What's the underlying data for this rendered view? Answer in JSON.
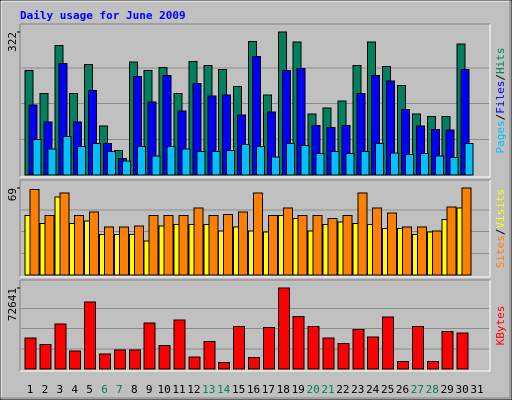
{
  "chart_data": [
    {
      "type": "bar",
      "title": "Daily usage for June 2009",
      "title_color": "#0000ff",
      "legend_separator": "/",
      "ylim": [
        0,
        322
      ],
      "yticks": [
        322
      ],
      "series": [
        {
          "name": "Hits",
          "color": "#00805c",
          "values": [
            235,
            183,
            292,
            183,
            249,
            110,
            55,
            254,
            235,
            242,
            183,
            256,
            247,
            238,
            199,
            301,
            180,
            322,
            299,
            137,
            151,
            167,
            247,
            299,
            244,
            201,
            137,
            132,
            132,
            295,
            null
          ]
        },
        {
          "name": "Files",
          "color": "#0000ff",
          "values": [
            158,
            119,
            251,
            119,
            190,
            71,
            37,
            222,
            164,
            224,
            144,
            206,
            178,
            180,
            135,
            267,
            142,
            235,
            240,
            112,
            107,
            112,
            183,
            224,
            212,
            148,
            110,
            103,
            101,
            237,
            null
          ]
        },
        {
          "name": "Pages",
          "color": "#00c0ff",
          "values": [
            80,
            59,
            87,
            64,
            71,
            53,
            32,
            64,
            43,
            64,
            59,
            53,
            53,
            55,
            69,
            64,
            41,
            71,
            66,
            48,
            53,
            48,
            53,
            71,
            50,
            46,
            48,
            43,
            39,
            71,
            null
          ]
        }
      ]
    },
    {
      "type": "bar",
      "legend_separator": "/",
      "ylim": [
        0,
        69
      ],
      "yticks": [
        69
      ],
      "series": [
        {
          "name": "Visits",
          "color": "#ffff00",
          "values": [
            47,
            41,
            62,
            41,
            43,
            32,
            32,
            32,
            27,
            39,
            40,
            40,
            40,
            35,
            38,
            35,
            34,
            47,
            45,
            35,
            40,
            42,
            41,
            40,
            37,
            37,
            32,
            34,
            44,
            53,
            null
          ]
        },
        {
          "name": "Sites",
          "color": "#ff8000",
          "values": [
            68,
            47,
            65,
            47,
            50,
            38,
            38,
            39,
            47,
            47,
            47,
            53,
            47,
            48,
            50,
            65,
            47,
            53,
            47,
            47,
            45,
            47,
            65,
            53,
            49,
            38,
            38,
            35,
            54,
            69,
            null
          ]
        }
      ]
    },
    {
      "type": "bar",
      "ylim": [
        0,
        72641
      ],
      "yticks": [
        72641
      ],
      "categories": [
        "1",
        "2",
        "3",
        "4",
        "5",
        "6",
        "7",
        "8",
        "9",
        "10",
        "11",
        "12",
        "13",
        "14",
        "15",
        "16",
        "17",
        "18",
        "19",
        "20",
        "21",
        "22",
        "23",
        "24",
        "25",
        "26",
        "27",
        "28",
        "29",
        "30",
        "31"
      ],
      "category_colors": [
        "#000000",
        "#000000",
        "#000000",
        "#000000",
        "#000000",
        "#00805c",
        "#00805c",
        "#000000",
        "#000000",
        "#000000",
        "#000000",
        "#000000",
        "#00805c",
        "#00805c",
        "#000000",
        "#000000",
        "#000000",
        "#000000",
        "#000000",
        "#00805c",
        "#00805c",
        "#000000",
        "#000000",
        "#000000",
        "#000000",
        "#000000",
        "#00805c",
        "#00805c",
        "#000000",
        "#000000",
        "#000000"
      ],
      "series": [
        {
          "name": "KBytes",
          "color": "#ff0000",
          "values": [
            27875,
            21962,
            40546,
            16049,
            59974,
            13515,
            16894,
            16894,
            41390,
            21117,
            43924,
            10981,
            24496,
            5913,
            38011,
            10136,
            37166,
            72641,
            47303,
            38011,
            27875,
            22807,
            35477,
            28719,
            46458,
            6758,
            38011,
            6758,
            33788,
            32098,
            null
          ]
        }
      ]
    }
  ]
}
